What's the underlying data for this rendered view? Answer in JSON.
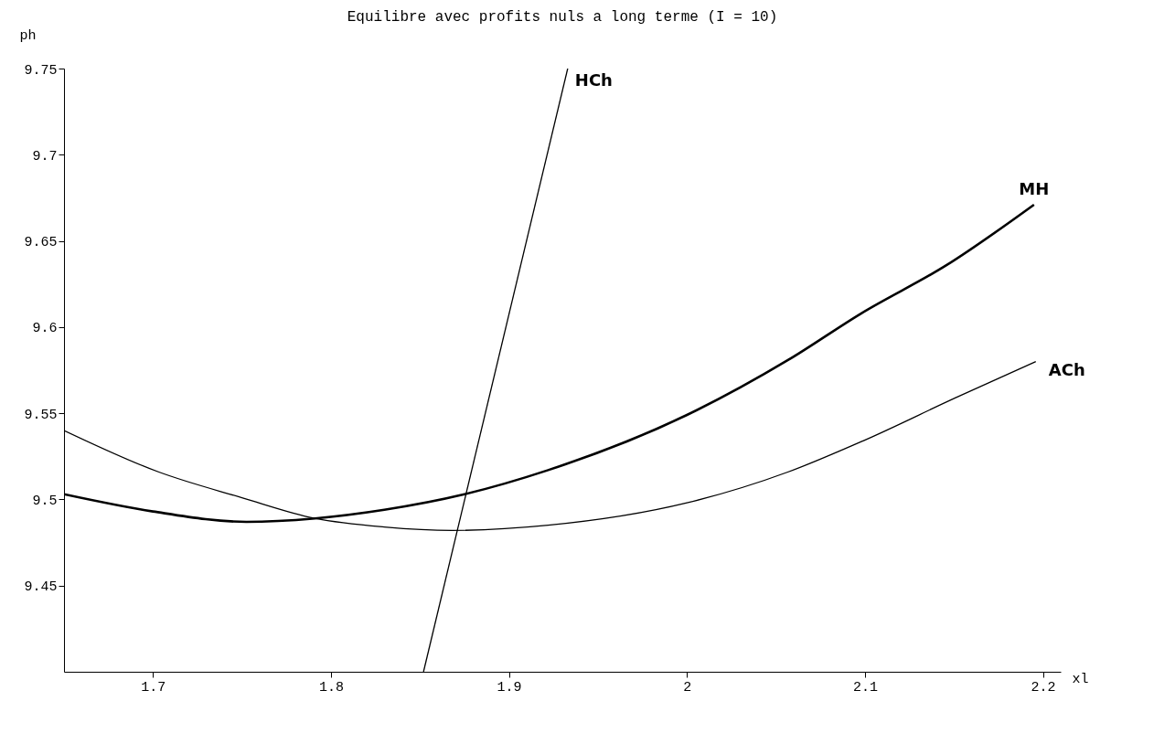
{
  "chart_data": {
    "type": "line",
    "title": "Equilibre avec profits nuls a long terme (I = 10)",
    "xlabel": "xl",
    "ylabel": "ph",
    "xlim": [
      1.65,
      2.21
    ],
    "ylim": [
      9.4,
      9.75
    ],
    "xticks": [
      1.7,
      1.8,
      1.9,
      2,
      2.1,
      2.2
    ],
    "yticks": [
      9.45,
      9.5,
      9.55,
      9.6,
      9.65,
      9.7,
      9.75
    ],
    "grid": false,
    "legend": false,
    "marker": "none",
    "line_style": "solid",
    "series": [
      {
        "name": "HCh",
        "color": "#000000",
        "x": [
          1.852,
          1.933
        ],
        "values": [
          9.4,
          9.75
        ]
      },
      {
        "name": "MH",
        "color": "#000000",
        "x": [
          1.65,
          1.7,
          1.7525,
          1.791,
          1.83,
          1.875,
          1.922,
          2.0,
          2.057,
          2.098,
          2.146,
          2.195
        ],
        "values": [
          9.503,
          9.493,
          9.487,
          9.489,
          9.494,
          9.503,
          9.517,
          9.549,
          9.581,
          9.608,
          9.636,
          9.671
        ]
      },
      {
        "name": "ACh",
        "color": "#000000",
        "x": [
          1.65,
          1.703,
          1.75,
          1.791,
          1.83,
          1.868,
          1.922,
          2.0,
          2.057,
          2.099,
          2.151,
          2.196
        ],
        "values": [
          9.54,
          9.516,
          9.501,
          9.489,
          9.484,
          9.482,
          9.485,
          9.498,
          9.516,
          9.534,
          9.559,
          9.58
        ]
      }
    ]
  }
}
